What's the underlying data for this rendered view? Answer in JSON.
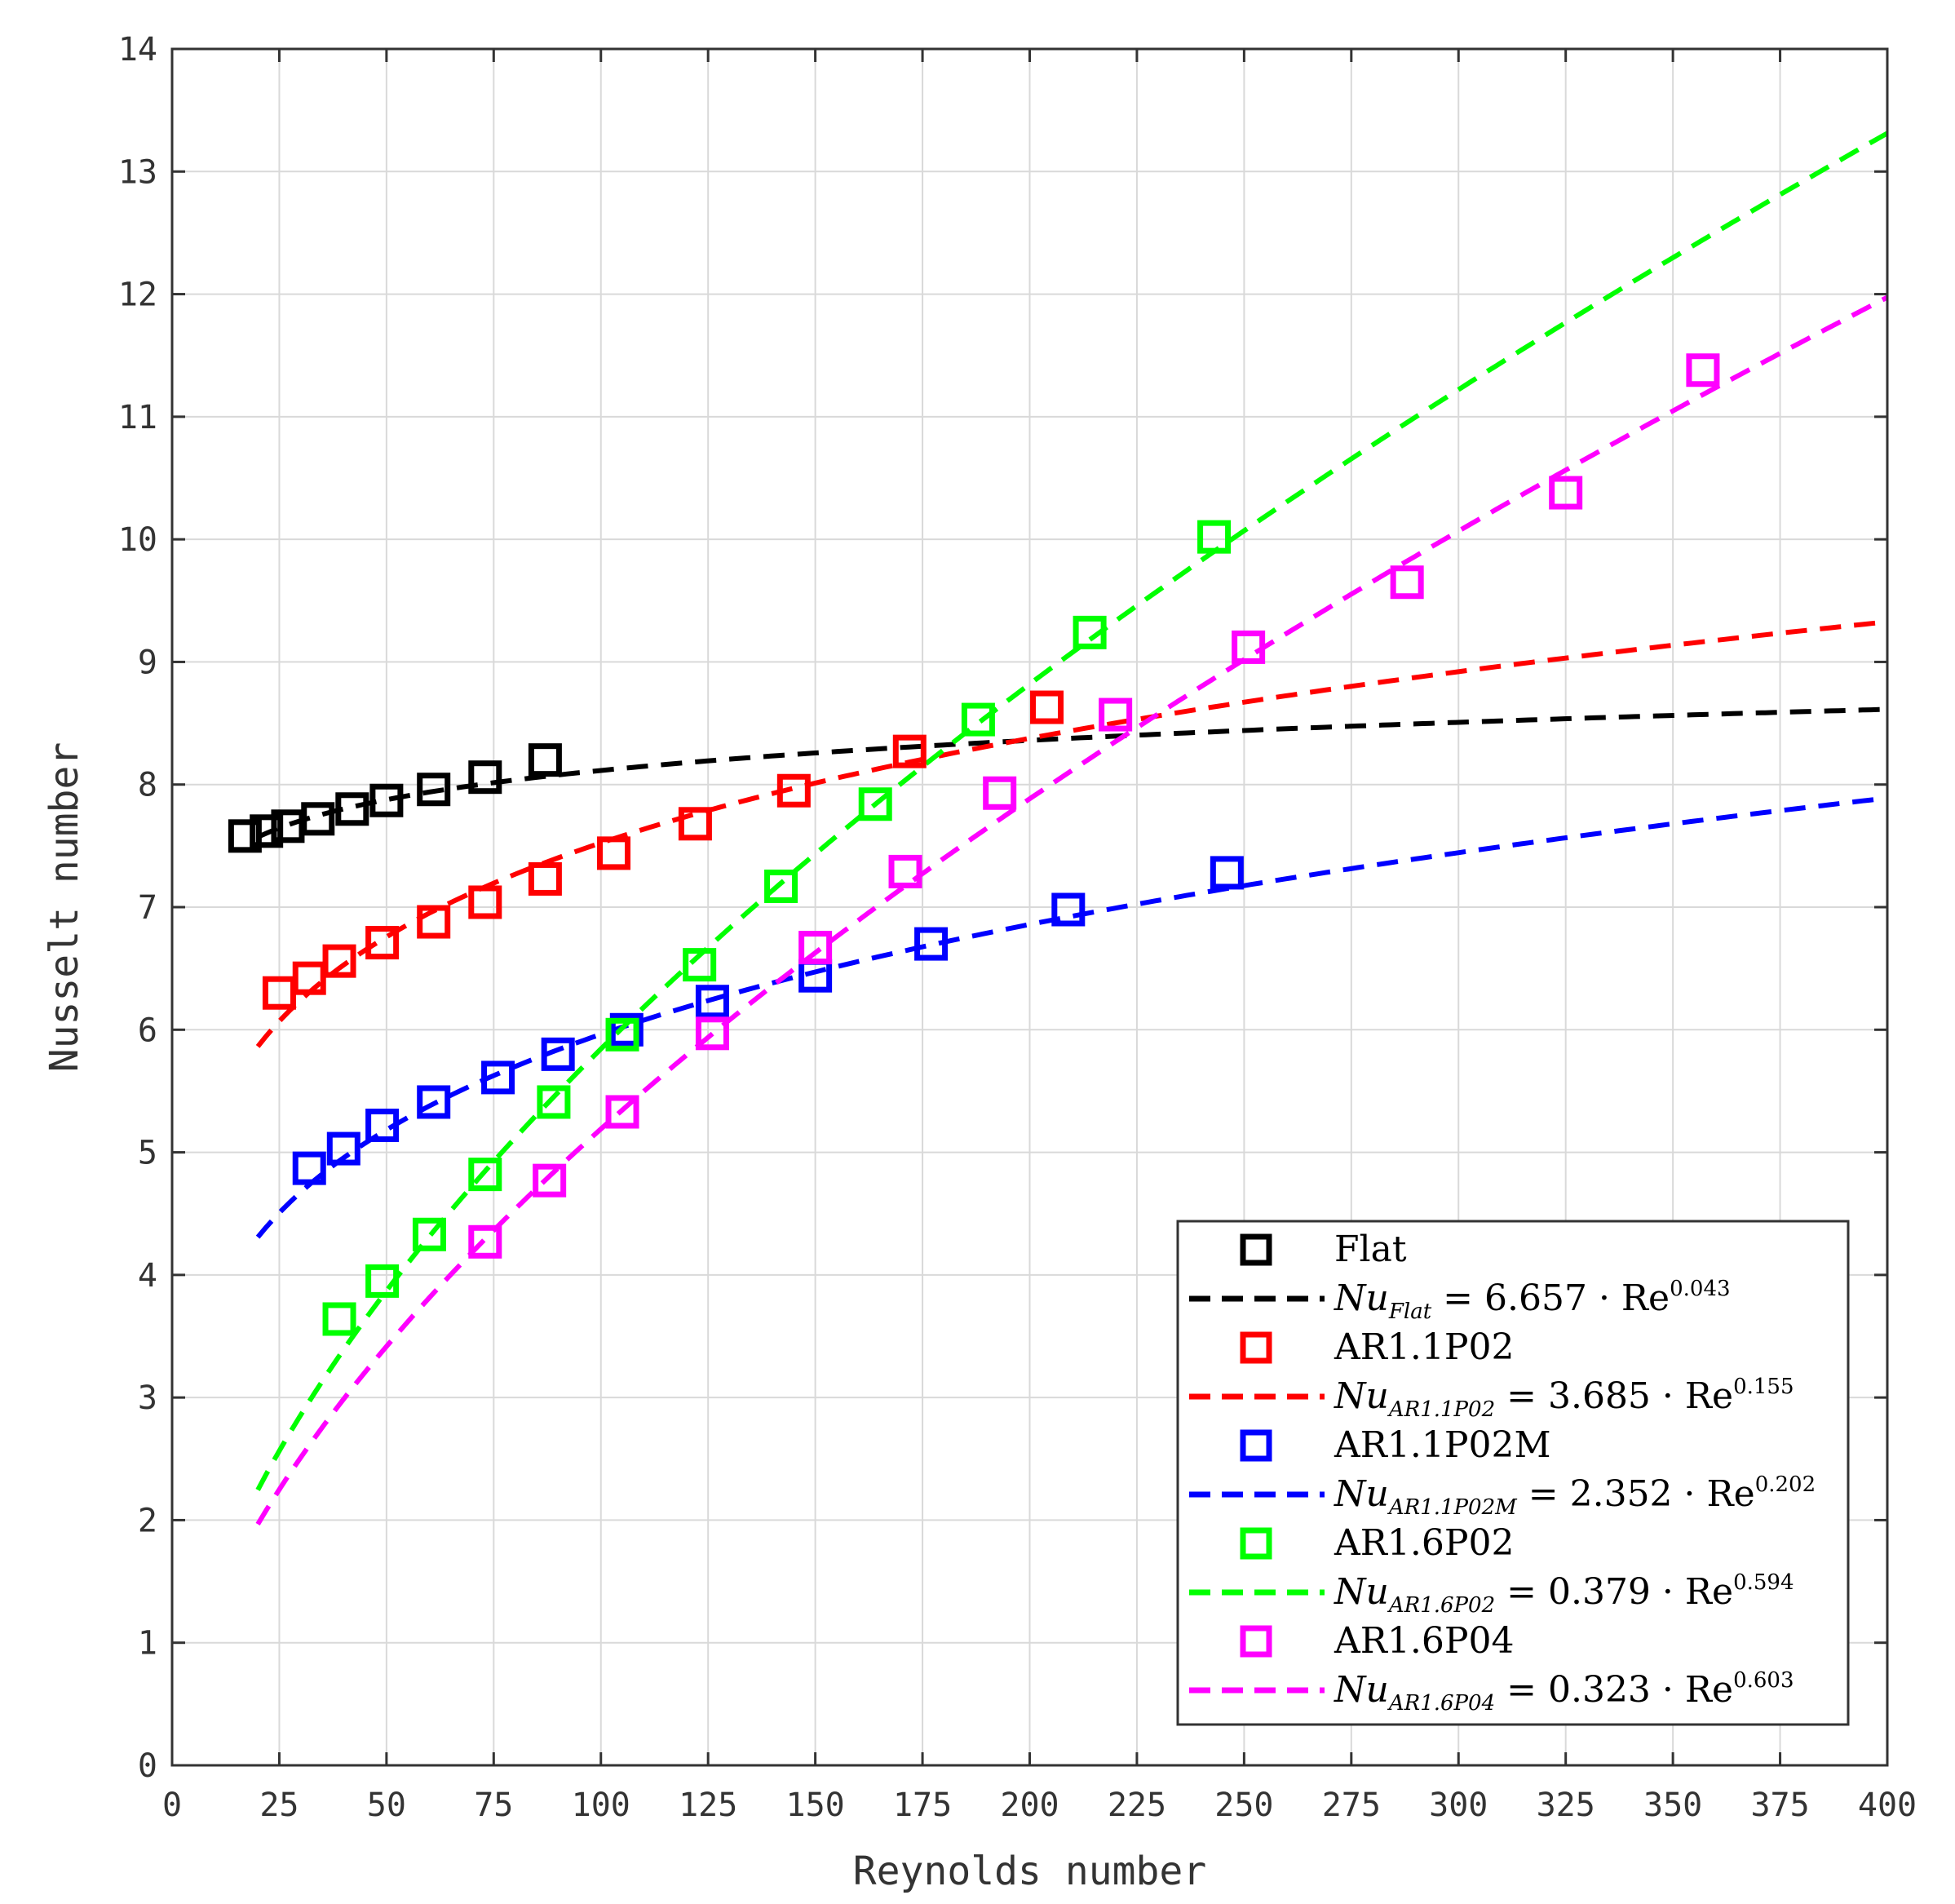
{
  "chart_data": {
    "type": "scatter",
    "title": "",
    "xlabel": "Reynolds number",
    "ylabel": "Nusselt number",
    "xlim": [
      0,
      400
    ],
    "ylim": [
      0,
      14
    ],
    "xticks": [
      0,
      25,
      50,
      75,
      100,
      125,
      150,
      175,
      200,
      225,
      250,
      275,
      300,
      325,
      350,
      375,
      400
    ],
    "yticks": [
      0,
      1,
      2,
      3,
      4,
      5,
      6,
      7,
      8,
      9,
      10,
      11,
      12,
      13,
      14
    ],
    "grid": true,
    "legend_position": "bottom-right",
    "fit_x_range": [
      20,
      400
    ],
    "series": [
      {
        "name": "Flat",
        "color": "#000000",
        "fit_prefix": "Nu",
        "fit_sub": "Flat",
        "fit_mid": " = 6.657 · Re",
        "fit_exp": "0.043",
        "fit_coef": 6.657,
        "fit_pow": 0.043,
        "x": [
          17,
          22,
          27,
          34,
          42,
          50,
          61,
          73,
          87
        ],
        "y": [
          7.58,
          7.62,
          7.66,
          7.72,
          7.8,
          7.87,
          7.96,
          8.06,
          8.2
        ]
      },
      {
        "name": "AR1.1P02",
        "color": "#ff0000",
        "fit_prefix": "Nu",
        "fit_sub": "AR1.1P02",
        "fit_mid": " = 3.685 · Re",
        "fit_exp": "0.155",
        "fit_coef": 3.685,
        "fit_pow": 0.155,
        "x": [
          25,
          32,
          39,
          49,
          61,
          73,
          87,
          103,
          122,
          145,
          172,
          204
        ],
        "y": [
          6.3,
          6.42,
          6.56,
          6.71,
          6.88,
          7.04,
          7.23,
          7.44,
          7.68,
          7.95,
          8.27,
          8.63
        ]
      },
      {
        "name": "AR1.1P02M",
        "color": "#0000ff",
        "fit_prefix": "Nu",
        "fit_sub": "AR1.1P02M",
        "fit_mid": " = 2.352 · Re",
        "fit_exp": "0.202",
        "fit_coef": 2.352,
        "fit_pow": 0.202,
        "x": [
          32,
          40,
          49,
          61,
          76,
          90,
          106,
          126,
          150,
          177,
          209,
          246
        ],
        "y": [
          4.87,
          5.03,
          5.22,
          5.41,
          5.61,
          5.8,
          6.0,
          6.23,
          6.44,
          6.7,
          6.98,
          7.28
        ]
      },
      {
        "name": "AR1.6P02",
        "color": "#00ff00",
        "fit_prefix": "Nu",
        "fit_sub": "AR1.6P02",
        "fit_mid": " = 0.379 · Re",
        "fit_exp": "0.594",
        "fit_coef": 0.379,
        "fit_pow": 0.594,
        "x": [
          39,
          49,
          60,
          73,
          89,
          105,
          123,
          142,
          164,
          188,
          214,
          243
        ],
        "y": [
          3.64,
          3.95,
          4.33,
          4.82,
          5.41,
          5.96,
          6.53,
          7.17,
          7.84,
          8.53,
          9.24,
          10.02
        ]
      },
      {
        "name": "AR1.6P04",
        "color": "#ff00ff",
        "fit_prefix": "Nu",
        "fit_sub": "AR1.6P04",
        "fit_mid": " = 0.323 · Re",
        "fit_exp": "0.603",
        "fit_coef": 0.323,
        "fit_pow": 0.603,
        "x": [
          73,
          88,
          105,
          126,
          150,
          171,
          193,
          220,
          251,
          288,
          325,
          357
        ],
        "y": [
          4.27,
          4.77,
          5.33,
          5.97,
          6.67,
          7.29,
          7.93,
          8.57,
          9.12,
          9.65,
          10.38,
          11.38
        ]
      }
    ]
  }
}
